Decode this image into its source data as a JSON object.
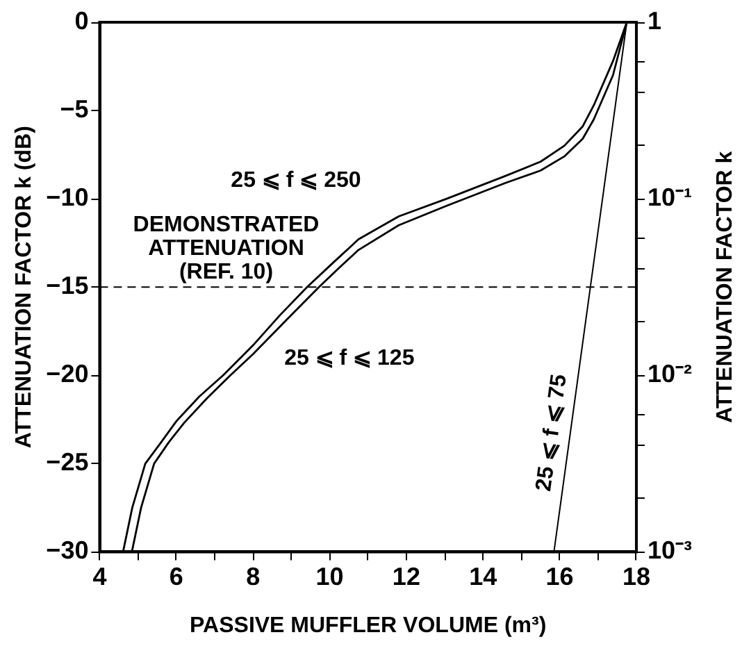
{
  "chart_data": {
    "type": "line",
    "xlabel": "PASSIVE MUFFLER VOLUME (m³)",
    "ylabel": "ATTENUATION FACTOR k (dB)",
    "y2label": "ATTENUATION FACTOR k",
    "xlim": [
      4,
      18
    ],
    "xticks": [
      4,
      {
        "value": 5,
        "label": null
      },
      6,
      {
        "value": 7,
        "label": null
      },
      8,
      {
        "value": 9,
        "label": null
      },
      10,
      {
        "value": 11,
        "label": null
      },
      12,
      {
        "value": 13,
        "label": null
      },
      14,
      {
        "value": 15,
        "label": null
      },
      16,
      {
        "value": 17,
        "label": null
      },
      18
    ],
    "ylim": [
      -30,
      0
    ],
    "yticks": [
      -30,
      -25,
      -20,
      -15,
      -10,
      -5,
      0
    ],
    "y2lim": [
      0.001,
      1
    ],
    "y2ticks": [
      {
        "value": 0.001,
        "label": "10⁻³"
      },
      {
        "value": 0.002,
        "label": null
      },
      {
        "value": 0.004,
        "label": null
      },
      {
        "value": 0.006,
        "label": null
      },
      {
        "value": 0.01,
        "label": "10⁻²"
      },
      {
        "value": 0.02,
        "label": null
      },
      {
        "value": 0.04,
        "label": null
      },
      {
        "value": 0.06,
        "label": null
      },
      {
        "value": 0.1,
        "label": "10⁻¹"
      },
      {
        "value": 0.2,
        "label": null
      },
      {
        "value": 0.4,
        "label": null
      },
      {
        "value": 0.6,
        "label": null
      },
      1
    ],
    "log": "y2",
    "grid": false,
    "legend": false,
    "marker": "none",
    "line_style": "solid",
    "series": [
      {
        "name": "25 ⩽ f ⩽ 250",
        "color": "#000000",
        "x": [
          4.61,
          4.85,
          5.19,
          5.6,
          6.0,
          6.6,
          7.22,
          8.0,
          8.7,
          9.41,
          10.1,
          10.75,
          11.8,
          13.05,
          14.59,
          15.5,
          16.12,
          16.6,
          16.89,
          17.39,
          17.75
        ],
        "values": [
          -30,
          -27.5,
          -25,
          -23.8,
          -22.6,
          -21.2,
          -20,
          -18.3,
          -16.6,
          -15,
          -13.6,
          -12.3,
          -11.0,
          -10.0,
          -8.7,
          -7.9,
          -7.0,
          -5.9,
          -4.7,
          -2.2,
          0
        ]
      },
      {
        "name": "25 ⩽ f ⩽ 125",
        "color": "#000000",
        "x": [
          4.84,
          5.08,
          5.42,
          5.8,
          6.2,
          6.8,
          7.41,
          8.0,
          8.9,
          9.72,
          10.3,
          10.75,
          11.8,
          13.05,
          14.59,
          15.5,
          16.12,
          16.6,
          16.89,
          17.39,
          17.75
        ],
        "values": [
          -30,
          -27.5,
          -25,
          -23.8,
          -22.7,
          -21.3,
          -20,
          -18.8,
          -16.8,
          -15,
          -13.8,
          -12.9,
          -11.5,
          -10.4,
          -9.1,
          -8.4,
          -7.6,
          -6.6,
          -5.5,
          -3.0,
          0
        ]
      },
      {
        "name": "25 ⩽ f ⩽ 75",
        "color": "#000000",
        "x": [
          15.85,
          17.75
        ],
        "values": [
          -30,
          0
        ]
      }
    ],
    "ref_lines": [
      {
        "axis": "y",
        "value": -15,
        "label": "DEMONSTRATED\nATTENUATION\n(REF. 10)",
        "line_style": "dashed",
        "color": "#000000"
      }
    ]
  }
}
